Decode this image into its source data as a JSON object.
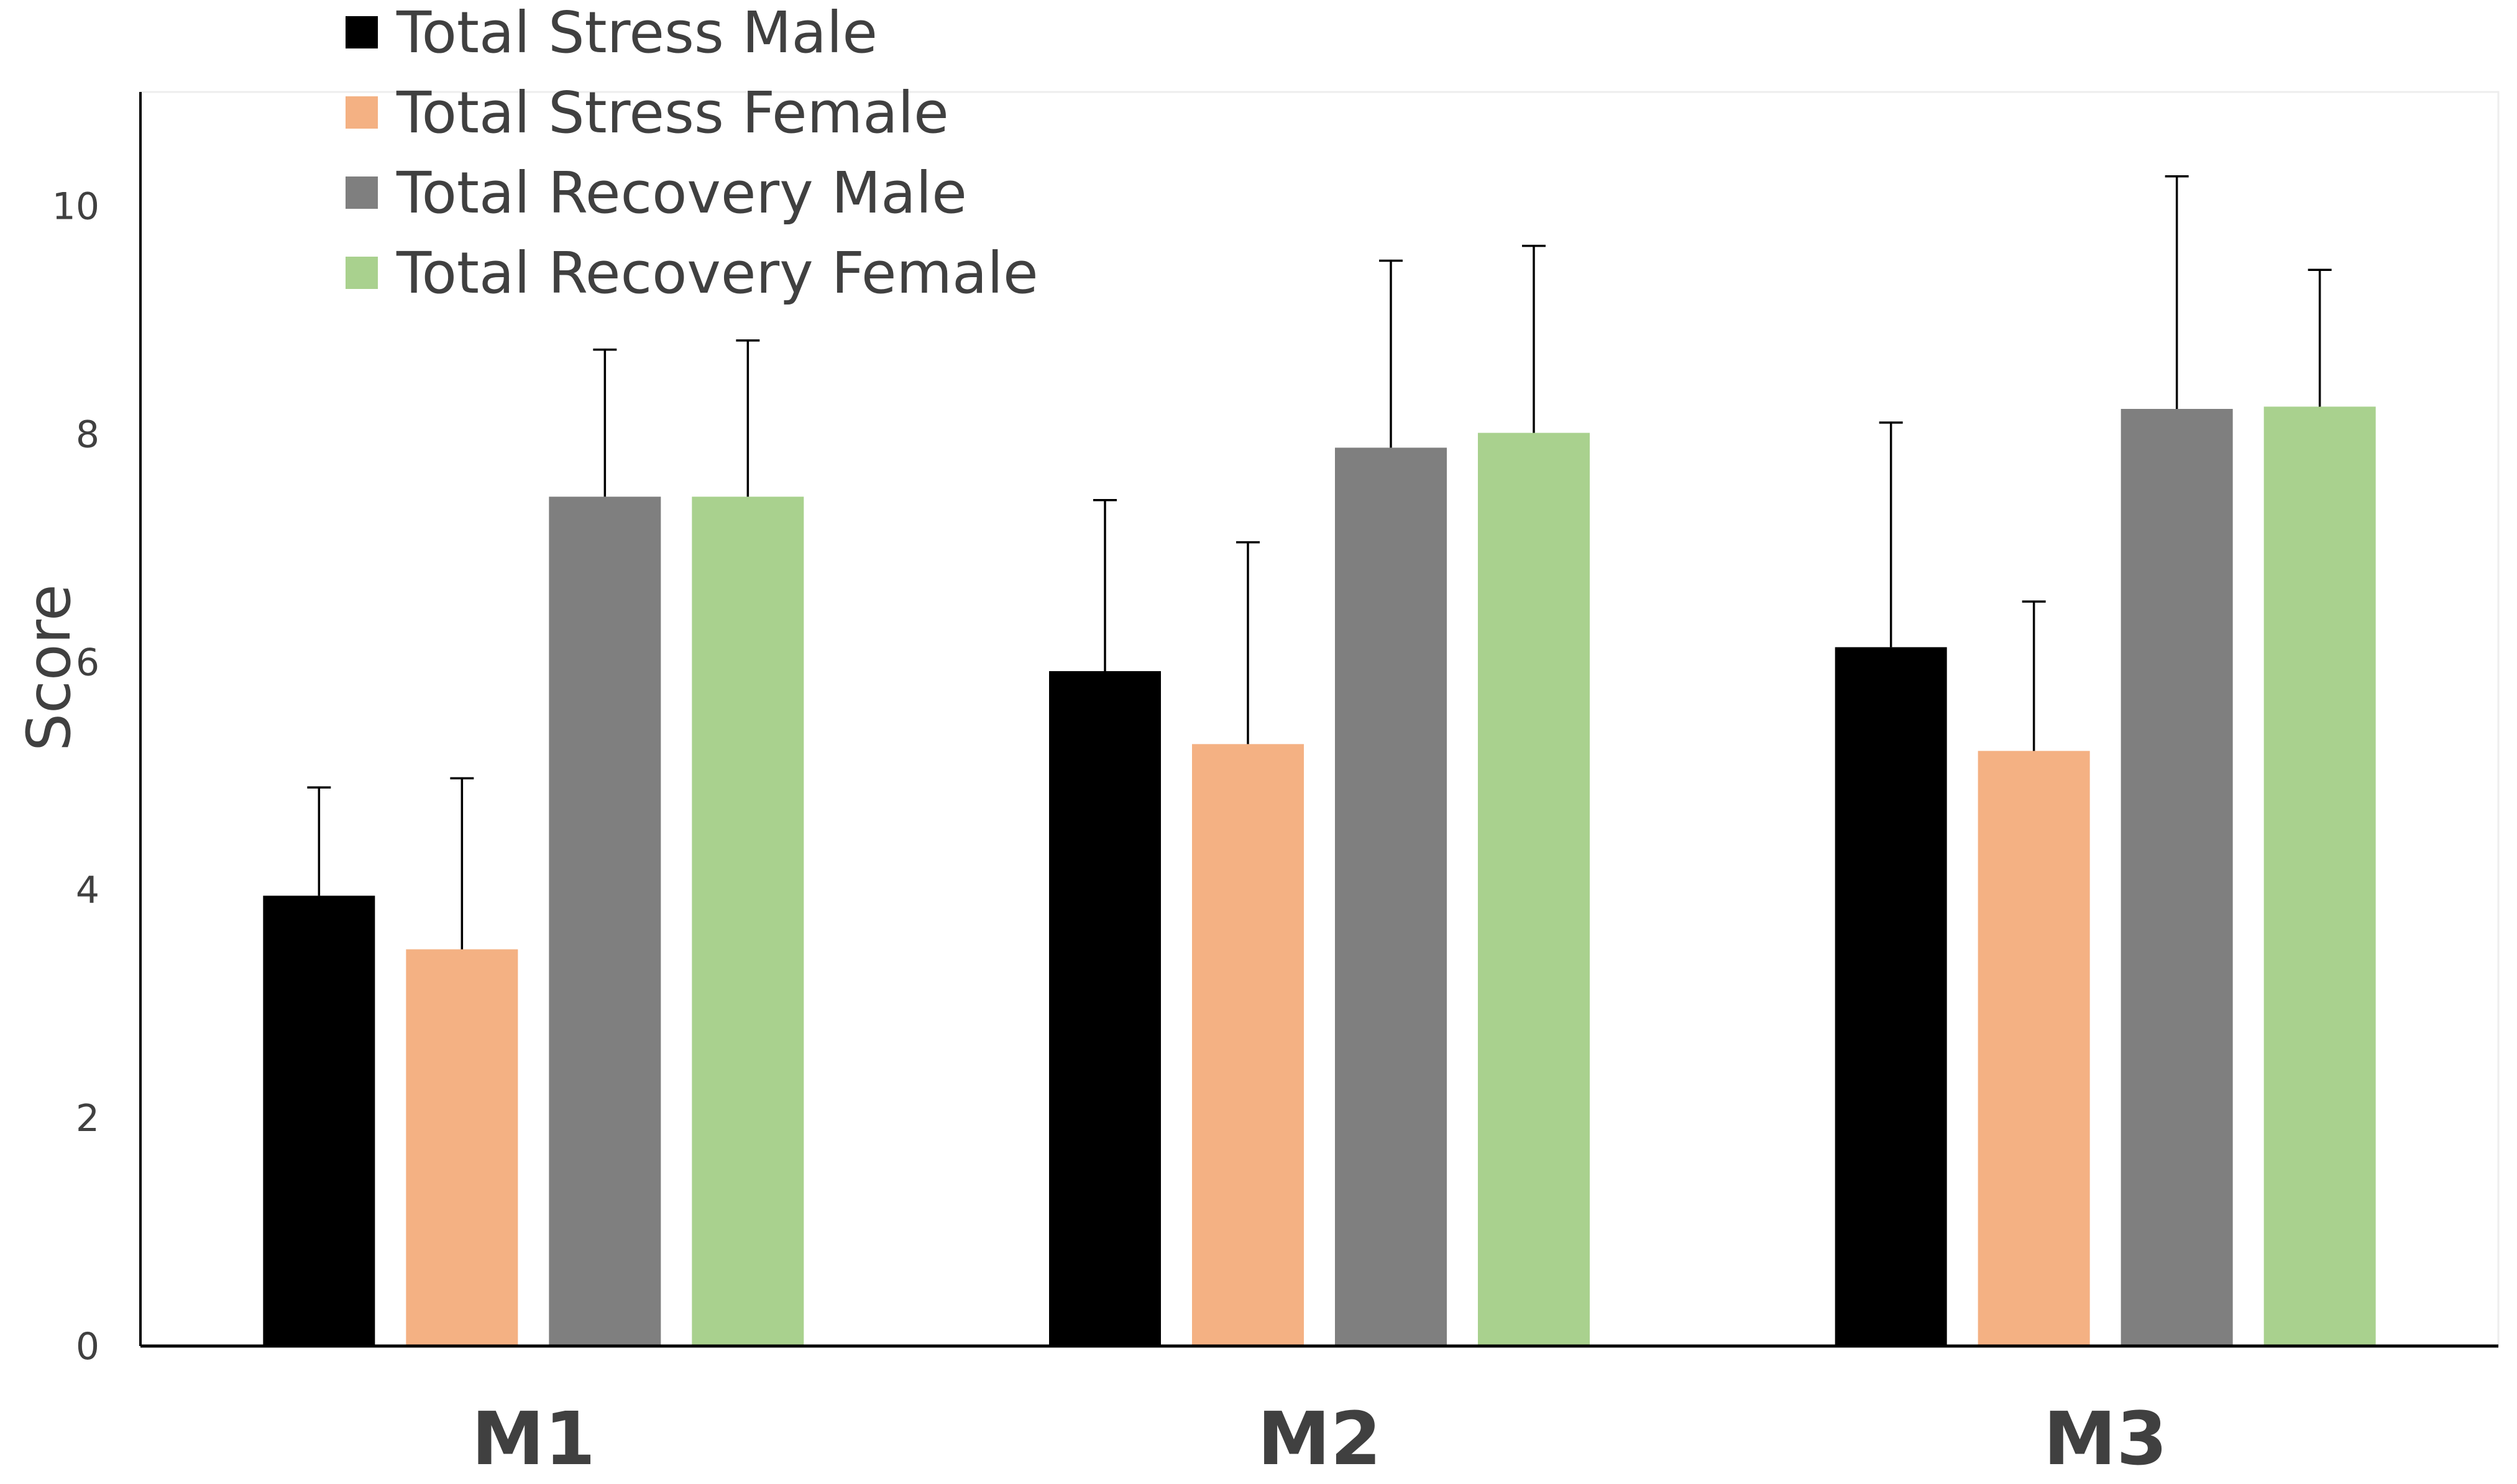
{
  "chart_data": {
    "type": "bar",
    "title": "",
    "xlabel": "",
    "ylabel": "Score",
    "ylim": [
      0,
      11
    ],
    "yticks": [
      0,
      2,
      4,
      6,
      8,
      10
    ],
    "grid": false,
    "legend_position": "top-left",
    "categories": [
      "M1",
      "M2",
      "M3"
    ],
    "series": [
      {
        "name": "Total Stress Male",
        "color": "#000000",
        "values": [
          3.95,
          5.92,
          6.13
        ],
        "error": [
          0.95,
          1.5,
          1.97
        ]
      },
      {
        "name": "Total Stress Female",
        "color": "#F4B183",
        "values": [
          3.48,
          5.28,
          5.22
        ],
        "error": [
          1.5,
          1.77,
          1.31
        ]
      },
      {
        "name": "Total Recovery Male",
        "color": "#7F7F7F",
        "values": [
          7.45,
          7.88,
          8.22
        ],
        "error": [
          1.29,
          1.64,
          2.04
        ]
      },
      {
        "name": "Total Recovery Female",
        "color": "#A9D18E",
        "values": [
          7.45,
          8.01,
          8.24
        ],
        "error": [
          1.37,
          1.64,
          1.2
        ]
      }
    ]
  }
}
